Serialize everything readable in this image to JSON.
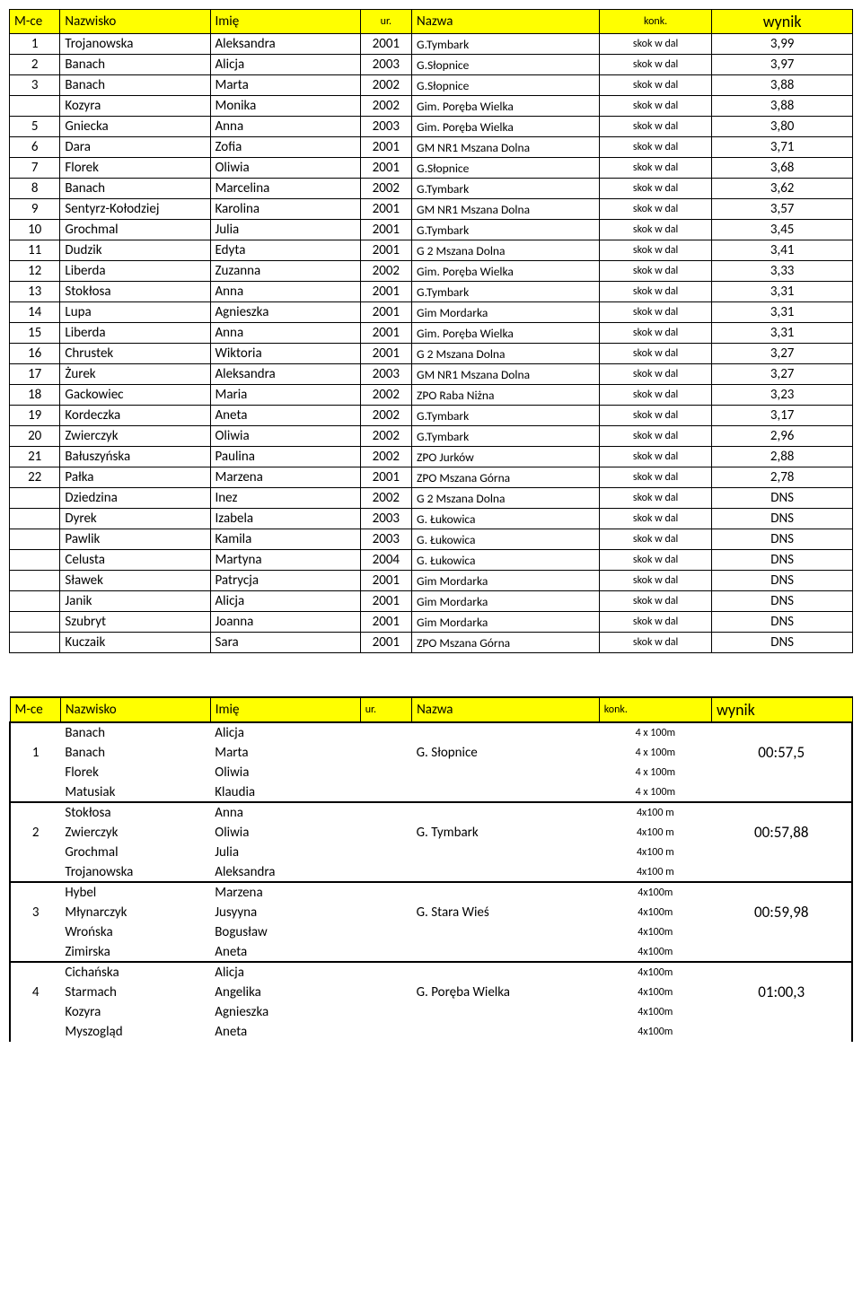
{
  "table1": {
    "headers": {
      "mce": "M-ce",
      "nazwisko": "Nazwisko",
      "imie": "Imię",
      "ur": "ur.",
      "nazwa": "Nazwa",
      "konk": "konk.",
      "wynik": "wynik"
    },
    "rows": [
      {
        "mce": "1",
        "nazw": "Trojanowska",
        "imie": "Aleksandra",
        "ur": "2001",
        "nazwa": "G.Tymbark",
        "konk": "skok w dal",
        "wynik": "3,99"
      },
      {
        "mce": "2",
        "nazw": "Banach",
        "imie": "Alicja",
        "ur": "2003",
        "nazwa": "G.Słopnice",
        "konk": "skok w dal",
        "wynik": "3,97"
      },
      {
        "mce": "3",
        "nazw": "Banach",
        "imie": "Marta",
        "ur": "2002",
        "nazwa": "G.Słopnice",
        "konk": "skok w dal",
        "wynik": "3,88"
      },
      {
        "mce": "",
        "nazw": "Kozyra",
        "imie": "Monika",
        "ur": "2002",
        "nazwa": "Gim. Poręba Wielka",
        "konk": "skok w dal",
        "wynik": "3,88"
      },
      {
        "mce": "5",
        "nazw": "Gniecka",
        "imie": "Anna",
        "ur": "2003",
        "nazwa": "Gim. Poręba Wielka",
        "konk": "skok w dal",
        "wynik": "3,80"
      },
      {
        "mce": "6",
        "nazw": "Dara",
        "imie": "Zofia",
        "ur": "2001",
        "nazwa": "GM NR1 Mszana Dolna",
        "konk": "skok w dal",
        "wynik": "3,71"
      },
      {
        "mce": "7",
        "nazw": "Florek",
        "imie": "Oliwia",
        "ur": "2001",
        "nazwa": "G.Słopnice",
        "konk": "skok w dal",
        "wynik": "3,68"
      },
      {
        "mce": "8",
        "nazw": "Banach",
        "imie": "Marcelina",
        "ur": "2002",
        "nazwa": "G.Tymbark",
        "konk": "skok w dal",
        "wynik": "3,62"
      },
      {
        "mce": "9",
        "nazw": "Sentyrz-Kołodziej",
        "imie": "Karolina",
        "ur": "2001",
        "nazwa": "GM NR1 Mszana Dolna",
        "konk": "skok w dal",
        "wynik": "3,57"
      },
      {
        "mce": "10",
        "nazw": "Grochmal",
        "imie": "Julia",
        "ur": "2001",
        "nazwa": "G.Tymbark",
        "konk": "skok w dal",
        "wynik": "3,45"
      },
      {
        "mce": "11",
        "nazw": "Dudzik",
        "imie": "Edyta",
        "ur": "2001",
        "nazwa": "G 2 Mszana Dolna",
        "konk": "skok w dal",
        "wynik": "3,41"
      },
      {
        "mce": "12",
        "nazw": "Liberda",
        "imie": "Zuzanna",
        "ur": "2002",
        "nazwa": "Gim. Poręba Wielka",
        "konk": "skok w dal",
        "wynik": "3,33"
      },
      {
        "mce": "13",
        "nazw": "Stokłosa",
        "imie": "Anna",
        "ur": "2001",
        "nazwa": "G.Tymbark",
        "konk": "skok w dal",
        "wynik": "3,31"
      },
      {
        "mce": "14",
        "nazw": "Lupa",
        "imie": "Agnieszka",
        "ur": "2001",
        "nazwa": "Gim Mordarka",
        "konk": "skok w dal",
        "wynik": "3,31"
      },
      {
        "mce": "15",
        "nazw": "Liberda",
        "imie": "Anna",
        "ur": "2001",
        "nazwa": "Gim. Poręba Wielka",
        "konk": "skok w dal",
        "wynik": "3,31"
      },
      {
        "mce": "16",
        "nazw": "Chrustek",
        "imie": "Wiktoria",
        "ur": "2001",
        "nazwa": "G 2 Mszana Dolna",
        "konk": "skok w dal",
        "wynik": "3,27"
      },
      {
        "mce": "17",
        "nazw": "Żurek",
        "imie": "Aleksandra",
        "ur": "2003",
        "nazwa": "GM NR1 Mszana Dolna",
        "konk": "skok w dal",
        "wynik": "3,27"
      },
      {
        "mce": "18",
        "nazw": "Gackowiec",
        "imie": "Maria",
        "ur": "2002",
        "nazwa": "ZPO Raba Niżna",
        "konk": "skok w dal",
        "wynik": "3,23"
      },
      {
        "mce": "19",
        "nazw": "Kordeczka",
        "imie": "Aneta",
        "ur": "2002",
        "nazwa": "G.Tymbark",
        "konk": "skok w dal",
        "wynik": "3,17"
      },
      {
        "mce": "20",
        "nazw": "Zwierczyk",
        "imie": "Oliwia",
        "ur": "2002",
        "nazwa": "G.Tymbark",
        "konk": "skok w dal",
        "wynik": "2,96"
      },
      {
        "mce": "21",
        "nazw": "Bałuszyńska",
        "imie": "Paulina",
        "ur": "2002",
        "nazwa": "ZPO Jurków",
        "konk": "skok w dal",
        "wynik": "2,88"
      },
      {
        "mce": "22",
        "nazw": "Pałka",
        "imie": "Marzena",
        "ur": "2001",
        "nazwa": "ZPO Mszana Górna",
        "konk": "skok w dal",
        "wynik": "2,78"
      },
      {
        "mce": "",
        "nazw": "Dziedzina",
        "imie": "Inez",
        "ur": "2002",
        "nazwa": "G 2 Mszana Dolna",
        "konk": "skok w dal",
        "wynik": "DNS"
      },
      {
        "mce": "",
        "nazw": "Dyrek",
        "imie": "Izabela",
        "ur": "2003",
        "nazwa": "G. Łukowica",
        "konk": "skok w dal",
        "wynik": "DNS"
      },
      {
        "mce": "",
        "nazw": "Pawlik",
        "imie": "Kamila",
        "ur": "2003",
        "nazwa": "G. Łukowica",
        "konk": "skok w dal",
        "wynik": "DNS"
      },
      {
        "mce": "",
        "nazw": "Celusta",
        "imie": "Martyna",
        "ur": "2004",
        "nazwa": "G. Łukowica",
        "konk": "skok w dal",
        "wynik": "DNS"
      },
      {
        "mce": "",
        "nazw": "Sławek",
        "imie": "Patrycja",
        "ur": "2001",
        "nazwa": "Gim Mordarka",
        "konk": "skok w dal",
        "wynik": "DNS"
      },
      {
        "mce": "",
        "nazw": "Janik",
        "imie": "Alicja",
        "ur": "2001",
        "nazwa": "Gim Mordarka",
        "konk": "skok w dal",
        "wynik": "DNS"
      },
      {
        "mce": "",
        "nazw": "Szubryt",
        "imie": "Joanna",
        "ur": "2001",
        "nazwa": "Gim Mordarka",
        "konk": "skok w dal",
        "wynik": "DNS"
      },
      {
        "mce": "",
        "nazw": "Kuczaik",
        "imie": "Sara",
        "ur": "2001",
        "nazwa": "ZPO Mszana Górna",
        "konk": "skok w dal",
        "wynik": "DNS"
      }
    ]
  },
  "table2": {
    "headers": {
      "mce": "M-ce",
      "nazwisko": "Nazwisko",
      "imie": "Imię",
      "ur": "ur.",
      "nazwa": "Nazwa",
      "konk": "konk.",
      "wynik": "wynik"
    },
    "teams": [
      {
        "mce": "1",
        "nazwa": "G. Słopnice",
        "wynik": "00:57,5",
        "members": [
          {
            "nazw": "Banach",
            "imie": "Alicja",
            "konk": "4 x 100m"
          },
          {
            "nazw": "Banach",
            "imie": "Marta",
            "konk": "4 x 100m"
          },
          {
            "nazw": "Florek",
            "imie": "Oliwia",
            "konk": "4 x 100m"
          },
          {
            "nazw": "Matusiak",
            "imie": "Klaudia",
            "konk": "4 x 100m"
          }
        ]
      },
      {
        "mce": "2",
        "nazwa": "G. Tymbark",
        "wynik": "00:57,88",
        "members": [
          {
            "nazw": "Stokłosa",
            "imie": "Anna",
            "konk": "4x100 m"
          },
          {
            "nazw": "Zwierczyk",
            "imie": "Oliwia",
            "konk": "4x100 m"
          },
          {
            "nazw": "Grochmal",
            "imie": "Julia",
            "konk": "4x100 m"
          },
          {
            "nazw": "Trojanowska",
            "imie": "Aleksandra",
            "konk": "4x100 m"
          }
        ]
      },
      {
        "mce": "3",
        "nazwa": "G. Stara Wieś",
        "wynik": "00:59,98",
        "members": [
          {
            "nazw": "Hybel",
            "imie": "Marzena",
            "konk": "4x100m"
          },
          {
            "nazw": "Młynarczyk",
            "imie": "Jusyyna",
            "konk": "4x100m"
          },
          {
            "nazw": "Wrońska",
            "imie": "Bogusław",
            "konk": "4x100m"
          },
          {
            "nazw": "Zimirska",
            "imie": "Aneta",
            "konk": "4x100m"
          }
        ]
      },
      {
        "mce": "4",
        "nazwa": "G. Poręba Wielka",
        "wynik": "01:00,3",
        "members": [
          {
            "nazw": "Cichańska",
            "imie": "Alicja",
            "konk": "4x100m"
          },
          {
            "nazw": "Starmach",
            "imie": "Angelika",
            "konk": "4x100m"
          },
          {
            "nazw": "Kozyra",
            "imie": "Agnieszka",
            "konk": "4x100m"
          },
          {
            "nazw": "Myszogląd",
            "imie": "Aneta",
            "konk": "4x100m"
          }
        ]
      }
    ]
  },
  "styles": {
    "header_bg": "#ffff00",
    "border_color": "#000000",
    "font_family": "Calibri, Arial, sans-serif"
  }
}
